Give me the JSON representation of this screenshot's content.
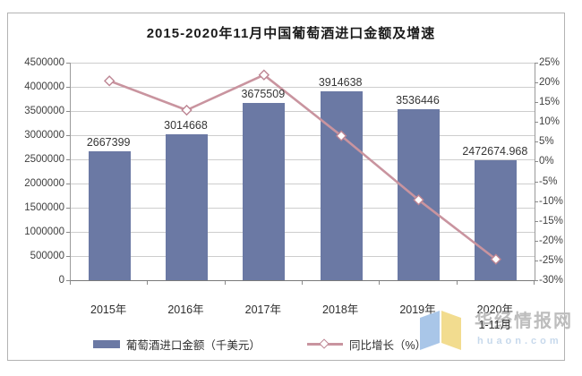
{
  "chart_data": {
    "type": "bar",
    "combo": "bar+line dual-axis",
    "title": "2015-2020年11月中国葡萄酒进口金额及增速",
    "categories": [
      "2015年",
      "2016年",
      "2017年",
      "2018年",
      "2019年",
      "2020年"
    ],
    "last_category_note": "1-11月",
    "series": [
      {
        "name": "葡萄酒进口金额（千美元）",
        "chart_type": "bar",
        "axis": "left",
        "values": [
          2667399,
          3014668,
          3675509,
          3914638,
          3536446,
          2472674.968
        ],
        "value_labels": [
          "2667399",
          "3014668",
          "3675509",
          "3914638",
          "3536446",
          "2472674.968"
        ]
      },
      {
        "name": "同比增长（%）",
        "chart_type": "line",
        "axis": "right",
        "values": [
          20.4,
          13.0,
          21.9,
          6.5,
          -9.7,
          -24.7
        ]
      }
    ],
    "left_axis": {
      "min": 0,
      "max": 4500000,
      "step": 500000,
      "tick_labels": [
        "4500000",
        "4000000",
        "3500000",
        "3000000",
        "2500000",
        "2000000",
        "1500000",
        "1000000",
        "500000",
        "0"
      ]
    },
    "right_axis": {
      "min": -30,
      "max": 25,
      "step": 5,
      "tick_labels": [
        "25%",
        "20%",
        "15%",
        "10%",
        "5%",
        "0%",
        "-5%",
        "-10%",
        "-15%",
        "-20%",
        "-25%",
        "-30%"
      ]
    },
    "grid": true,
    "legend_position": "bottom"
  },
  "legend": {
    "bar_label": "葡萄酒进口金额（千美元）",
    "line_label": "同比增长（%）"
  },
  "watermark": {
    "brand": "华经情报网",
    "domain": "huaon.com"
  },
  "colors": {
    "bar": "#6b79a4",
    "line": "#c9949f",
    "marker_fill": "#ffffff",
    "marker_stroke": "#bd8593",
    "grid": "#cdcdcd",
    "axis": "#8a8a8a",
    "border": "#b3b3b3",
    "title_text": "#1a1a1a",
    "axis_text": "#3f3f3f",
    "label_text": "#353535",
    "watermark_text": "#bdbdbd",
    "watermark_domain": "#c7d9ec",
    "logo_blue": "#a9c6e8",
    "logo_yellow": "#f2dc8f"
  }
}
